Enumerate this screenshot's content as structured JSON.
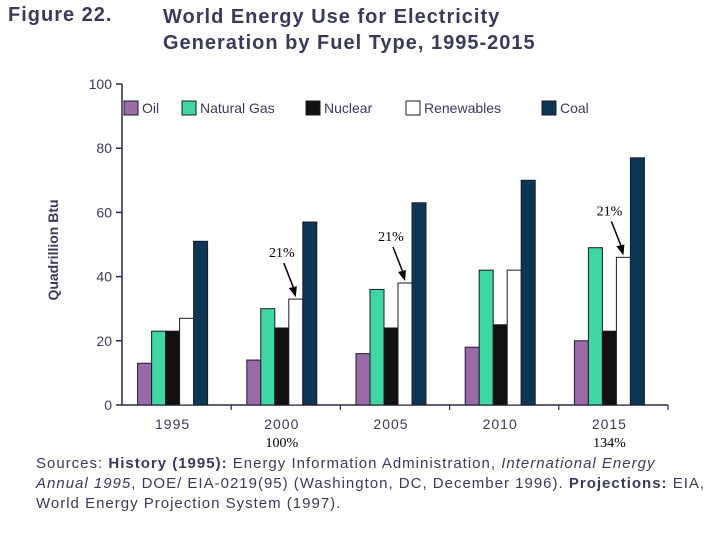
{
  "figure": {
    "label": "Figure 22.",
    "title_line1": "World Energy Use for Electricity",
    "title_line2": "Generation by Fuel Type, 1995-2015"
  },
  "chart_data": {
    "type": "bar",
    "title": "World Energy Use for Electricity Generation by Fuel Type, 1995-2015",
    "xlabel": "",
    "ylabel": "Quadrillion Btu",
    "ylim": [
      0,
      100
    ],
    "yticks": [
      "0",
      "20",
      "40",
      "60",
      "80",
      "100"
    ],
    "categories": [
      "1995",
      "2000",
      "2005",
      "2010",
      "2015"
    ],
    "legend_position": "top",
    "series": [
      {
        "name": "Oil",
        "color": "#9a6aa8",
        "values": [
          13,
          14,
          16,
          18,
          20
        ]
      },
      {
        "name": "Natural Gas",
        "color": "#3fd6a4",
        "values": [
          23,
          30,
          36,
          42,
          49
        ]
      },
      {
        "name": "Nuclear",
        "color": "#111111",
        "values": [
          23,
          24,
          24,
          25,
          23
        ]
      },
      {
        "name": "Renewables",
        "color": "#ffffff",
        "values": [
          27,
          33,
          38,
          42,
          46
        ]
      },
      {
        "name": "Coal",
        "color": "#0d3554",
        "values": [
          51,
          57,
          63,
          70,
          77
        ]
      }
    ],
    "annotations": [
      {
        "text": "21%",
        "target_category": "2000",
        "target_series": "Renewables"
      },
      {
        "text": "21%",
        "target_category": "2005",
        "target_series": "Renewables"
      },
      {
        "text": "21%",
        "target_category": "2015",
        "target_series": "Renewables"
      },
      {
        "text": "100%",
        "below_category": "2000"
      },
      {
        "text": "134%",
        "below_category": "2015"
      }
    ]
  },
  "sources": {
    "label": "Sources:",
    "history_label": "History (1995):",
    "history_text1": "Energy Information Administration,",
    "history_italic": "International Energy Annual 1995",
    "history_text2": ", DOE/ EIA-0219(95) (Washington, DC, December 1996).",
    "projections_label": "Projections:",
    "projections_text": "EIA, World Energy Projection System (1997)."
  }
}
